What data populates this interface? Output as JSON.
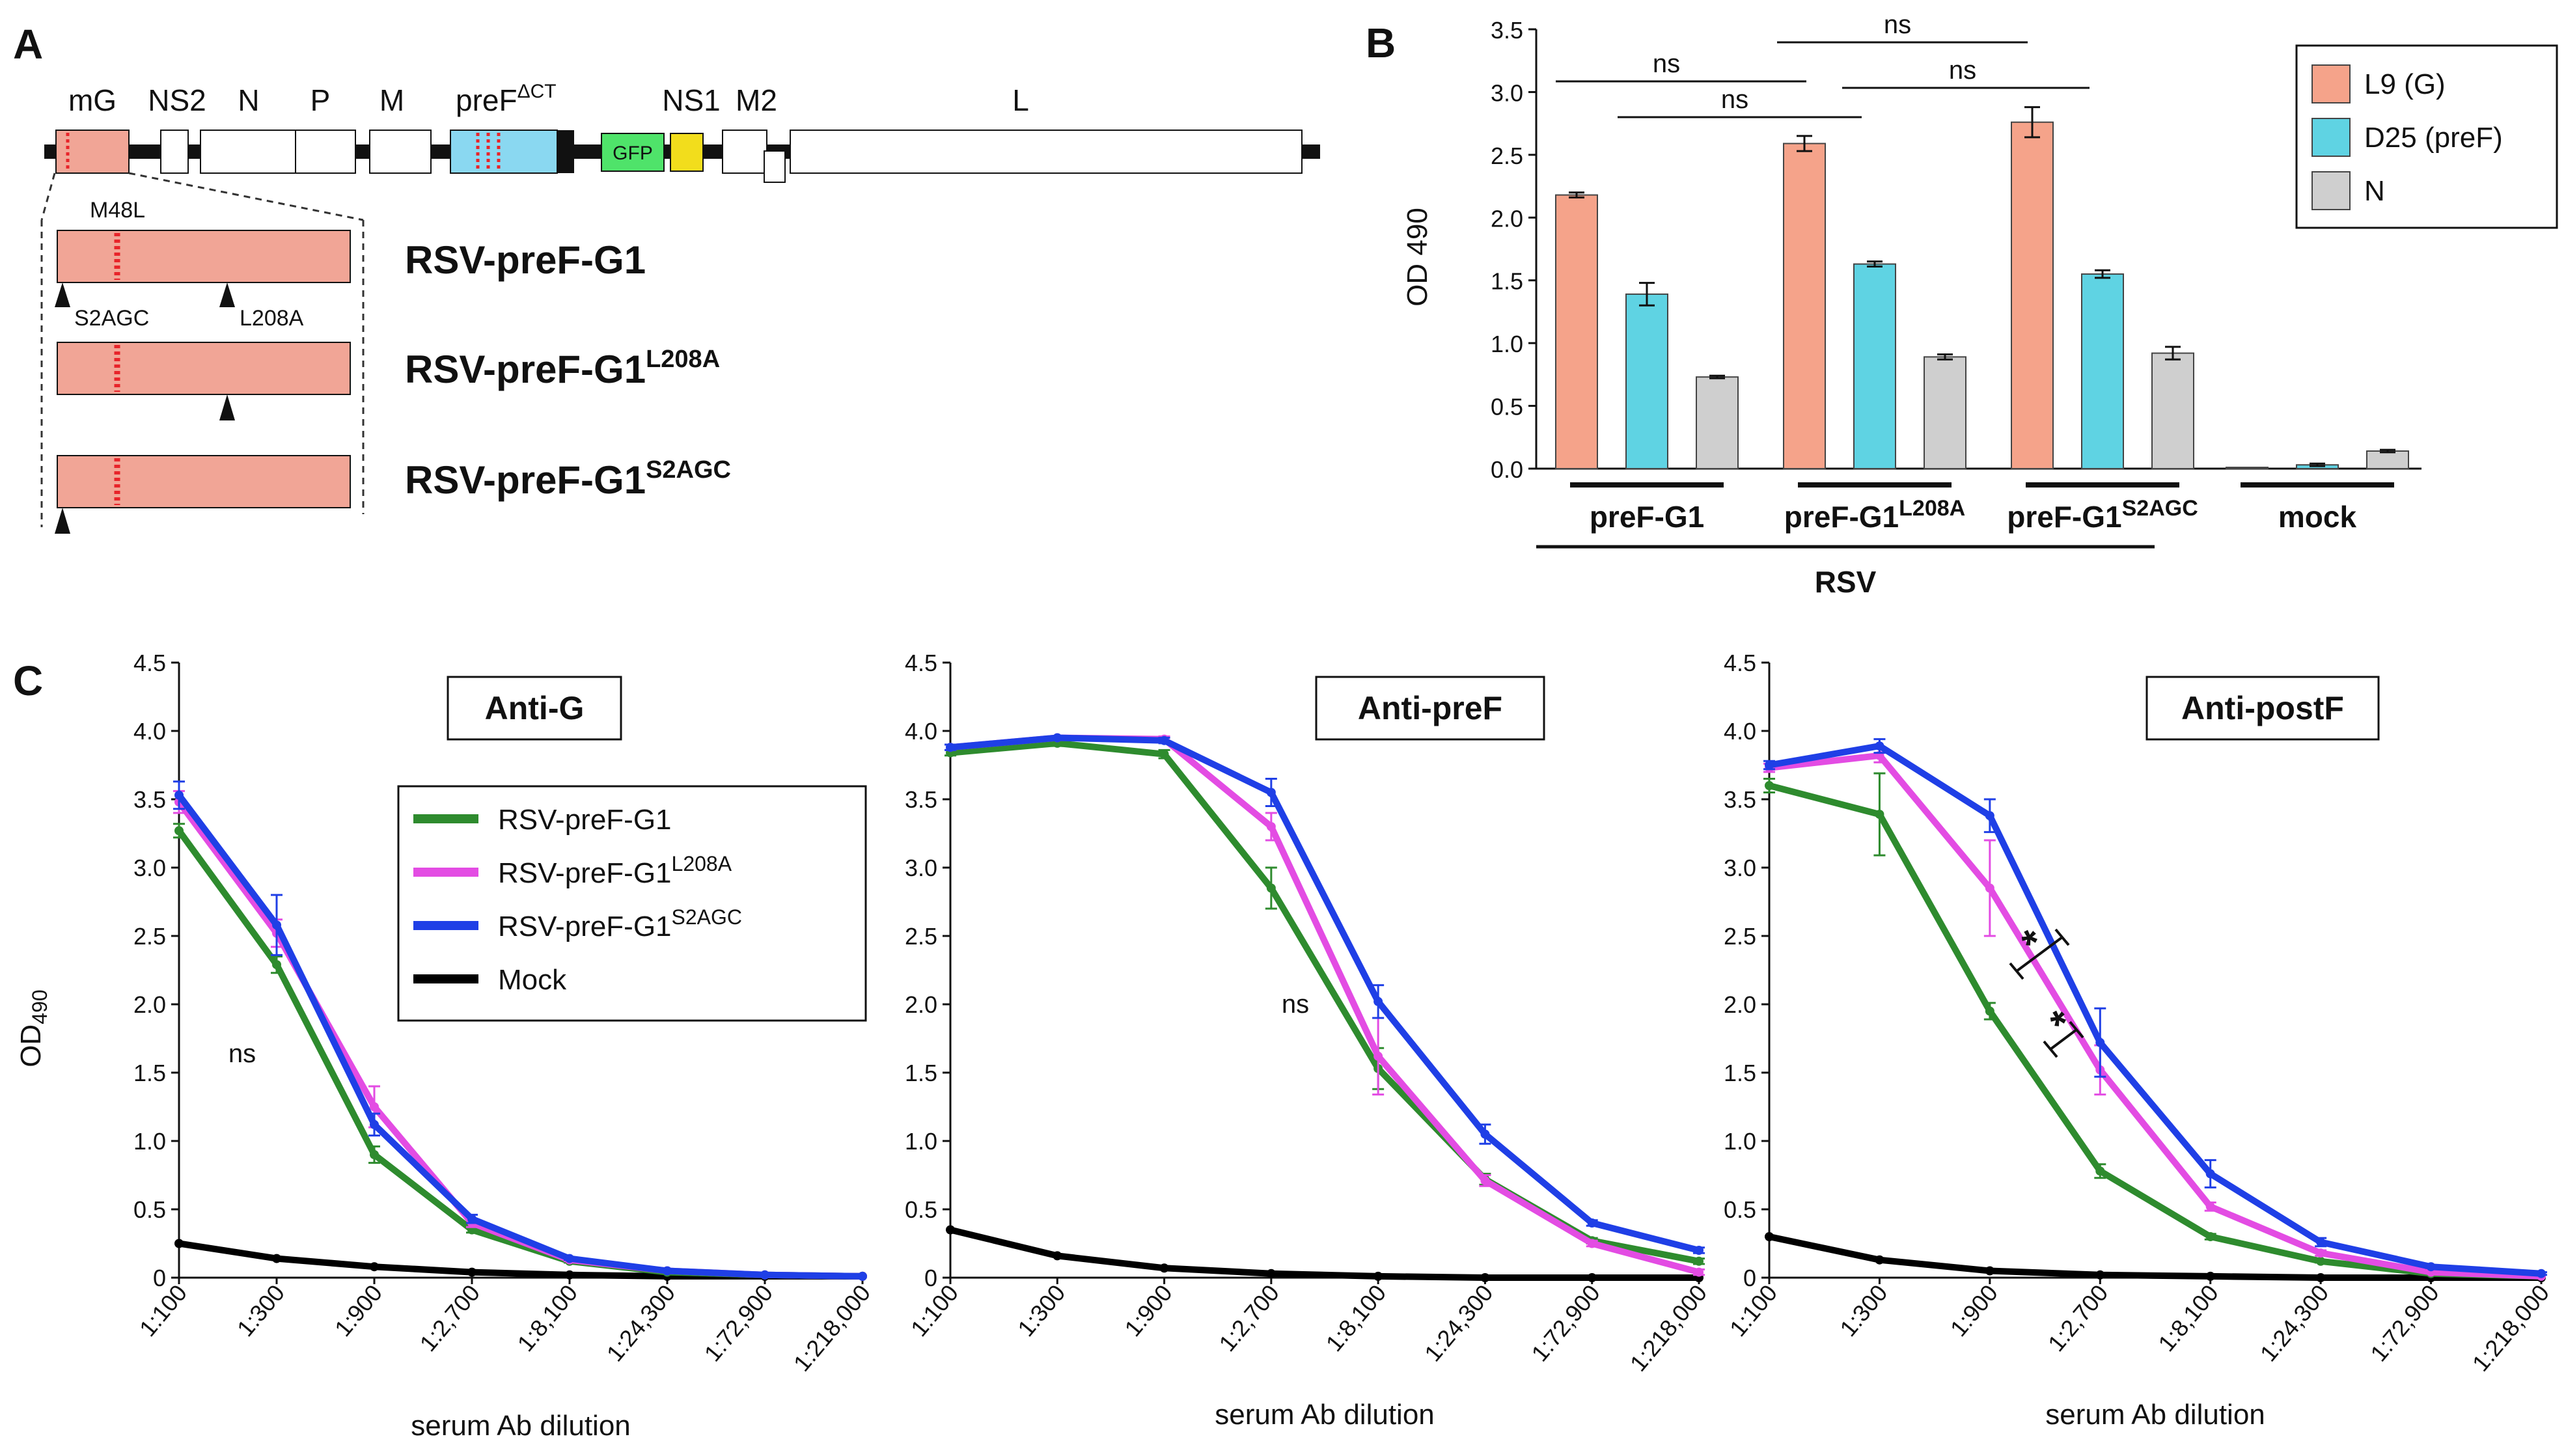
{
  "panels": {
    "a": "A",
    "b": "B",
    "c": "C"
  },
  "genome": {
    "genes": [
      "mG",
      "NS2",
      "N",
      "P",
      "M",
      "preF",
      "NS1",
      "M2",
      "L"
    ],
    "pref_sup": "ΔCT",
    "gfp": "GFP",
    "mutations": {
      "m48l": "M48L",
      "s2agc": "S2AGC",
      "l208a": "L208A"
    },
    "constructs": [
      {
        "base": "RSV-preF-G1",
        "sup": ""
      },
      {
        "base": "RSV-preF-G1",
        "sup": "L208A"
      },
      {
        "base": "RSV-preF-G1",
        "sup": "S2AGC"
      }
    ]
  },
  "colors": {
    "g": "#f5a38a",
    "pref": "#5fd3e3",
    "n": "#cfcfcf",
    "wt": "#2e8b2e",
    "l208a": "#e34ce3",
    "s2agc": "#1f3fe6",
    "mock": "#000000",
    "gene_mG": "#f1a596",
    "gene_preF": "#8ad8f1",
    "gene_GFP": "#4fe36a",
    "gene_NS1": "#f2dd1c",
    "mutation": "#e8242a"
  },
  "chart_data": [
    {
      "type": "bar",
      "panel": "B",
      "ylabel": "OD 490",
      "ylim": [
        0,
        3.5
      ],
      "yticks": [
        "0.0",
        "0.5",
        "1.0",
        "1.5",
        "2.0",
        "2.5",
        "3.0",
        "3.5"
      ],
      "categories": [
        {
          "base": "preF-G1",
          "sup": ""
        },
        {
          "base": "preF-G1",
          "sup": "L208A"
        },
        {
          "base": "preF-G1",
          "sup": "S2AGC"
        },
        {
          "base": "mock",
          "sup": ""
        }
      ],
      "group_label": "RSV",
      "series": [
        {
          "name": "L9 (G)",
          "values": [
            2.18,
            2.59,
            2.76,
            0.01
          ],
          "errors": [
            0.02,
            0.06,
            0.12,
            0.0
          ]
        },
        {
          "name": "D25 (preF)",
          "values": [
            1.39,
            1.63,
            1.55,
            0.03
          ],
          "errors": [
            0.09,
            0.02,
            0.03,
            0.01
          ]
        },
        {
          "name": "N",
          "values": [
            0.73,
            0.89,
            0.92,
            0.14
          ],
          "errors": [
            0.01,
            0.02,
            0.05,
            0.01
          ]
        }
      ],
      "significance": [
        "ns",
        "ns",
        "ns",
        "ns"
      ]
    },
    {
      "type": "line",
      "panel": "C",
      "title": "Anti-G",
      "xlabel": "serum Ab dilution",
      "ylabel_base": "OD",
      "ylabel_sub": "490",
      "x": [
        "1:100",
        "1:300",
        "1:900",
        "1:2,700",
        "1:8,100",
        "1:24,300",
        "1:72,900",
        "1:218,000"
      ],
      "ylim": [
        0,
        4.5
      ],
      "yticks": [
        "0",
        "0.5",
        "1.0",
        "1.5",
        "2.0",
        "2.5",
        "3.0",
        "3.5",
        "4.0",
        "4.5"
      ],
      "series": [
        {
          "name": "Mock",
          "values": [
            0.25,
            0.14,
            0.08,
            0.04,
            0.02,
            0.01,
            0.01,
            0.01
          ],
          "errors": [
            0,
            0,
            0,
            0,
            0,
            0,
            0,
            0
          ]
        },
        {
          "name": "RSV-preF-G1",
          "values": [
            3.27,
            2.29,
            0.9,
            0.35,
            0.12,
            0.04,
            0.02,
            0.01
          ],
          "errors": [
            0.05,
            0.06,
            0.06,
            0.02,
            0.01,
            0.01,
            0,
            0
          ]
        },
        {
          "name": "RSV-preF-G1 L208A",
          "values": [
            3.48,
            2.52,
            1.25,
            0.4,
            0.13,
            0.05,
            0.02,
            0.01
          ],
          "errors": [
            0.08,
            0.1,
            0.15,
            0.03,
            0.01,
            0,
            0,
            0
          ]
        },
        {
          "name": "RSV-preF-G1 S2AGC",
          "values": [
            3.53,
            2.58,
            1.12,
            0.43,
            0.14,
            0.05,
            0.02,
            0.01
          ],
          "errors": [
            0.1,
            0.22,
            0.08,
            0.03,
            0.01,
            0,
            0,
            0
          ]
        }
      ],
      "annotations": [
        "ns"
      ]
    },
    {
      "type": "line",
      "panel": "C",
      "title": "Anti-preF",
      "xlabel": "serum Ab dilution",
      "x": [
        "1:100",
        "1:300",
        "1:900",
        "1:2,700",
        "1:8,100",
        "1:24,300",
        "1:72,900",
        "1:218,000"
      ],
      "ylim": [
        0,
        4.5
      ],
      "yticks": [
        "0",
        "0.5",
        "1.0",
        "1.5",
        "2.0",
        "2.5",
        "3.0",
        "3.5",
        "4.0",
        "4.5"
      ],
      "series": [
        {
          "name": "Mock",
          "values": [
            0.35,
            0.16,
            0.07,
            0.03,
            0.01,
            0.0,
            0.0,
            0.0
          ],
          "errors": [
            0,
            0,
            0,
            0,
            0,
            0,
            0,
            0
          ]
        },
        {
          "name": "RSV-preF-G1",
          "values": [
            3.84,
            3.91,
            3.83,
            2.85,
            1.53,
            0.72,
            0.27,
            0.12
          ],
          "errors": [
            0.02,
            0.02,
            0.03,
            0.15,
            0.15,
            0.04,
            0.02,
            0.02
          ]
        },
        {
          "name": "RSV-preF-G1 L208A",
          "values": [
            3.88,
            3.95,
            3.94,
            3.3,
            1.62,
            0.71,
            0.25,
            0.04
          ],
          "errors": [
            0.02,
            0.01,
            0.02,
            0.1,
            0.28,
            0.04,
            0.02,
            0.02
          ]
        },
        {
          "name": "RSV-preF-G1 S2AGC",
          "values": [
            3.88,
            3.95,
            3.93,
            3.55,
            2.02,
            1.05,
            0.4,
            0.2
          ],
          "errors": [
            0.02,
            0.01,
            0.02,
            0.1,
            0.12,
            0.07,
            0.02,
            0.02
          ]
        }
      ],
      "annotations": [
        "ns"
      ]
    },
    {
      "type": "line",
      "panel": "C",
      "title": "Anti-postF",
      "xlabel": "serum Ab dilution",
      "x": [
        "1:100",
        "1:300",
        "1:900",
        "1:2,700",
        "1:8,100",
        "1:24,300",
        "1:72,900",
        "1:218,000"
      ],
      "ylim": [
        0,
        4.5
      ],
      "yticks": [
        "0",
        "0.5",
        "1.0",
        "1.5",
        "2.0",
        "2.5",
        "3.0",
        "3.5",
        "4.0",
        "4.5"
      ],
      "series": [
        {
          "name": "Mock",
          "values": [
            0.3,
            0.13,
            0.05,
            0.02,
            0.01,
            0.0,
            0.0,
            0.0
          ],
          "errors": [
            0,
            0,
            0,
            0,
            0,
            0,
            0,
            0
          ]
        },
        {
          "name": "RSV-preF-G1",
          "values": [
            3.6,
            3.39,
            1.95,
            0.78,
            0.3,
            0.12,
            0.03,
            0.01
          ],
          "errors": [
            0.05,
            0.3,
            0.06,
            0.05,
            0.02,
            0.01,
            0,
            0
          ]
        },
        {
          "name": "RSV-preF-G1 L208A",
          "values": [
            3.73,
            3.82,
            2.85,
            1.52,
            0.52,
            0.18,
            0.04,
            0.01
          ],
          "errors": [
            0.03,
            0.05,
            0.35,
            0.18,
            0.03,
            0.02,
            0,
            0
          ]
        },
        {
          "name": "RSV-preF-G1 S2AGC",
          "values": [
            3.75,
            3.89,
            3.38,
            1.72,
            0.76,
            0.26,
            0.08,
            0.03
          ],
          "errors": [
            0.03,
            0.05,
            0.12,
            0.25,
            0.1,
            0.03,
            0.01,
            0.01
          ]
        }
      ],
      "annotations": [
        "*",
        "*"
      ]
    }
  ]
}
